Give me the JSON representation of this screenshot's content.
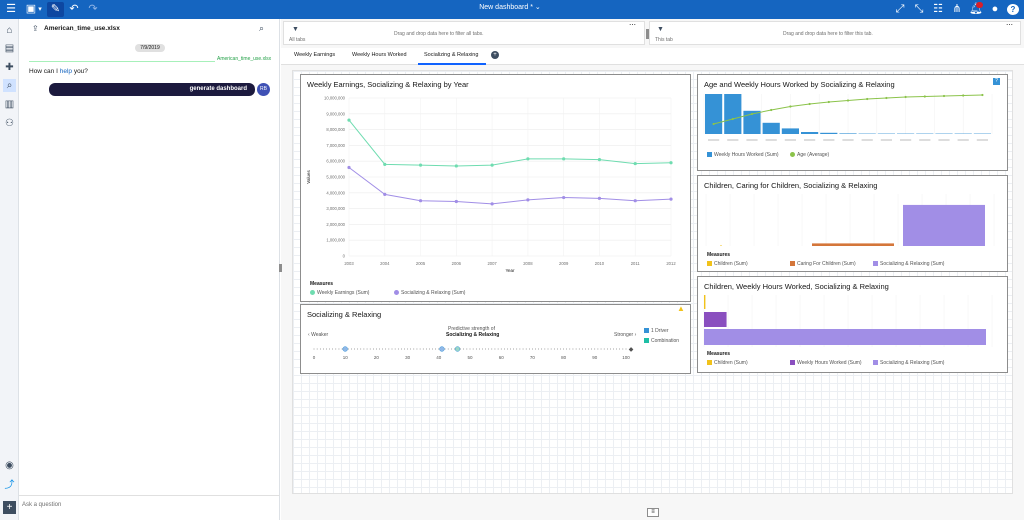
{
  "topbar": {
    "title": "New dashboard *"
  },
  "assistant": {
    "file_name": "American_time_use.xlsx",
    "date": "7/9/2019",
    "source_label": "American_time_use.xlsx",
    "greeting_prefix": "How can I ",
    "greeting_link": "help",
    "greeting_suffix": " you?",
    "user_message": "generate dashboard",
    "user_avatar": "RB",
    "ask_placeholder": "Ask a question"
  },
  "filters": {
    "all_tabs_label": "All tabs",
    "all_tabs_text": "Drag and drop data here to filter all tabs.",
    "this_tab_label": "This tab",
    "this_tab_text": "Drag and drop data here to filter this tab."
  },
  "tabs": [
    "Weekly Earnings",
    "Weekly Hours Worked",
    "Socializing & Relaxing"
  ],
  "widget1": {
    "title": "Weekly Earnings, Socializing & Relaxing by Year",
    "measures_label": "Measures",
    "legend": [
      "Weekly Earnings (Sum)",
      "Socializing & Relaxing (Sum)"
    ]
  },
  "widget2": {
    "title": "Socializing & Relaxing",
    "weaker": "Weaker",
    "stronger": "Stronger",
    "predictive_line1": "Predictive strength of",
    "predictive_line2": "Socializing & Relaxing",
    "legend": [
      "1 Driver",
      "Combination"
    ],
    "ticks": [
      "0",
      "10",
      "20",
      "30",
      "40",
      "50",
      "60",
      "70",
      "80",
      "90",
      "100"
    ]
  },
  "widget3": {
    "title": "Age and Weekly Hours Worked by Socializing & Relaxing",
    "legend": [
      "Weekly Hours Worked (Sum)",
      "Age (Average)"
    ]
  },
  "widget4": {
    "title": "Children, Caring for Children, Socializing & Relaxing",
    "measures_label": "Measures",
    "legend": [
      "Children (Sum)",
      "Caring For Children (Sum)",
      "Socializing & Relaxing (Sum)"
    ]
  },
  "widget5": {
    "title": "Children, Weekly Hours Worked, Socializing & Relaxing",
    "measures_label": "Measures",
    "legend": [
      "Children (Sum)",
      "Weekly Hours Worked (Sum)",
      "Socializing & Relaxing (Sum)"
    ]
  },
  "colors": {
    "accent": "#1565c0",
    "teal": "#6fdcb0",
    "purple": "#a18ee6",
    "blue": "#3592d6",
    "green": "#8bc34a",
    "orange": "#d4763a",
    "yellow": "#f1c21b",
    "dark_purple": "#8a4fbf"
  },
  "chart_data": [
    {
      "type": "line",
      "title": "Weekly Earnings, Socializing & Relaxing by Year",
      "xlabel": "Year",
      "ylabel": "Values",
      "x": [
        "2003",
        "2004",
        "2005",
        "2006",
        "2007",
        "2008",
        "2009",
        "2010",
        "2011",
        "2012"
      ],
      "ylim": [
        0,
        10000000
      ],
      "yticks": [
        "0",
        "1,000,000",
        "2,000,000",
        "3,000,000",
        "4,000,000",
        "5,000,000",
        "6,000,000",
        "7,000,000",
        "8,000,000",
        "9,000,000",
        "10,000,000"
      ],
      "series": [
        {
          "name": "Weekly Earnings (Sum)",
          "values": [
            8600000,
            5800000,
            5750000,
            5700000,
            5750000,
            6150000,
            6150000,
            6100000,
            5850000,
            5900000
          ]
        },
        {
          "name": "Socializing & Relaxing (Sum)",
          "values": [
            5600000,
            3900000,
            3500000,
            3450000,
            3300000,
            3550000,
            3700000,
            3650000,
            3500000,
            3600000
          ]
        }
      ],
      "legend_position": "bottom",
      "grid": true
    },
    {
      "type": "bar",
      "title": "Age and Weekly Hours Worked by Socializing & Relaxing",
      "series": [
        {
          "name": "Weekly Hours Worked (Sum)",
          "values": [
            100,
            100,
            58,
            28,
            14,
            5,
            3,
            1.5,
            1,
            0.5,
            0.3,
            0.2,
            0.1,
            0.1,
            0.05
          ]
        },
        {
          "name": "Age (Average)",
          "values": [
            20,
            30,
            40,
            48,
            55,
            60,
            64,
            67,
            70,
            72,
            74,
            75,
            76,
            77,
            78
          ]
        }
      ],
      "legend_position": "bottom"
    },
    {
      "type": "bar",
      "title": "Children, Caring for Children, Socializing & Relaxing",
      "categories": [
        "Children (Sum)",
        "Caring For Children (Sum)",
        "Socializing & Relaxing (Sum)"
      ],
      "values": [
        0,
        5,
        79
      ],
      "legend_position": "bottom"
    },
    {
      "type": "bar",
      "title": "Children, Weekly Hours Worked, Socializing & Relaxing",
      "categories": [
        "Children (Sum)",
        "Weekly Hours Worked (Sum)",
        "Socializing & Relaxing (Sum)"
      ],
      "values": [
        0.5,
        8,
        100
      ],
      "legend_position": "bottom"
    },
    {
      "type": "scatter",
      "title": "Socializing & Relaxing",
      "x": [
        10,
        41,
        46
      ],
      "series": [
        {
          "name": "1 Driver",
          "values": [
            10,
            41,
            46
          ]
        },
        {
          "name": "Combination",
          "values": []
        }
      ],
      "xlim": [
        0,
        100
      ]
    }
  ]
}
